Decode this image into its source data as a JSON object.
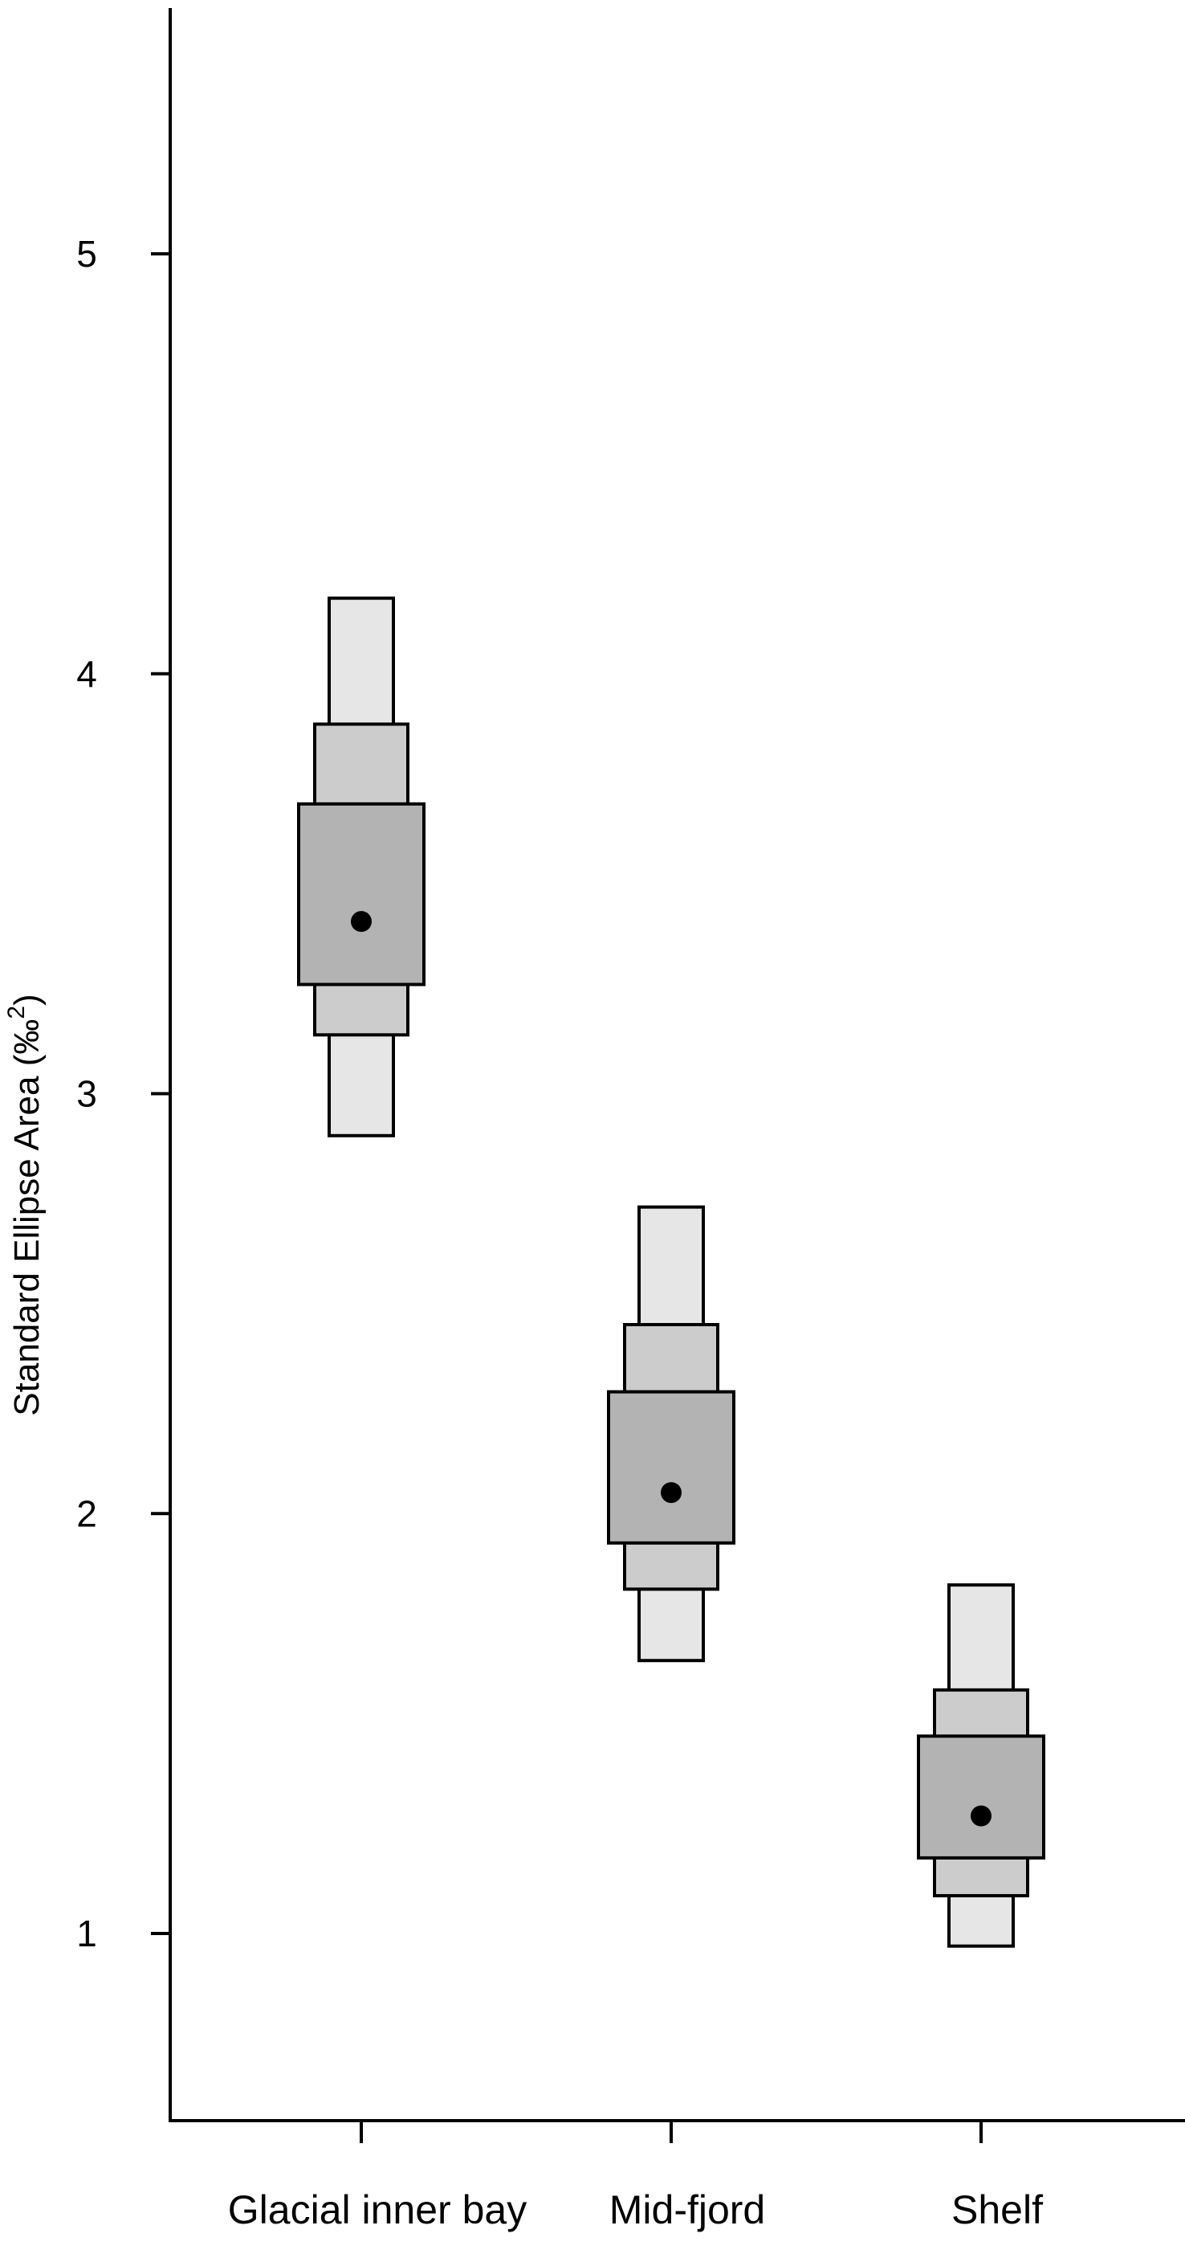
{
  "chart_data": {
    "type": "box",
    "title": "",
    "xlabel": "",
    "ylabel": "Standard Ellipse Area (‰",
    "ylabel_superscript": "2",
    "ylabel_close": ")",
    "ylim": [
      0.55,
      5.6
    ],
    "yticks": [
      1,
      2,
      3,
      4,
      5
    ],
    "ytick_labels": [
      "1",
      "2",
      "3",
      "4",
      "5"
    ],
    "categories": [
      "Glacial inner bay",
      "Mid-fjord",
      "Shelf"
    ],
    "series": [
      {
        "category": "Glacial inner bay",
        "mode": 3.41,
        "ci50": [
          3.26,
          3.69
        ],
        "ci75": [
          3.14,
          3.88
        ],
        "ci95": [
          2.9,
          4.18
        ]
      },
      {
        "category": "Mid-fjord",
        "mode": 2.05,
        "ci50": [
          1.93,
          2.29
        ],
        "ci75": [
          1.82,
          2.45
        ],
        "ci95": [
          1.65,
          2.73
        ]
      },
      {
        "category": "Shelf",
        "mode": 1.28,
        "ci50": [
          1.18,
          1.47
        ],
        "ci75": [
          1.09,
          1.58
        ],
        "ci95": [
          0.97,
          1.83
        ]
      }
    ],
    "colors": {
      "ci95": "#e6e6e6",
      "ci75": "#cccccc",
      "ci50": "#b3b3b3",
      "mode": "#000000",
      "axis": "#000000"
    },
    "grid": false,
    "legend": "none"
  }
}
